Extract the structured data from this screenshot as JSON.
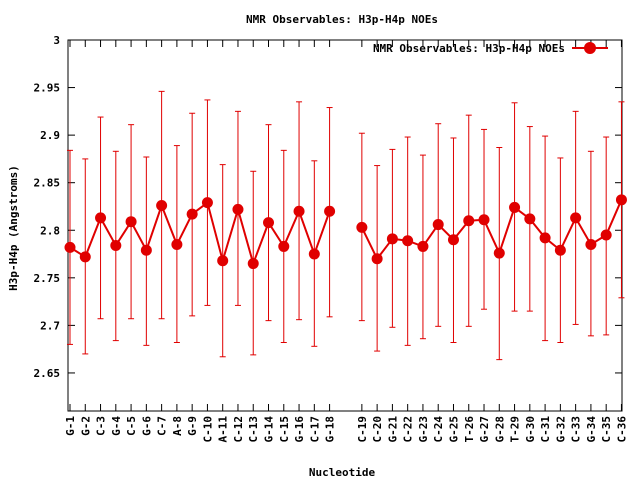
{
  "chart_data": {
    "type": "line",
    "title": "NMR Observables: H3p-H4p NOEs",
    "xlabel": "Nucleotide",
    "ylabel": "H3p-H4p (Angstroms)",
    "ylim": [
      2.61,
      3.0
    ],
    "yticks": [
      "2.65",
      "2.7",
      "2.75",
      "2.8",
      "2.85",
      "2.9",
      "2.95",
      "3"
    ],
    "grid": false,
    "legend_position": "top-right",
    "categories": [
      "G-1",
      "G-2",
      "C-3",
      "G-4",
      "C-5",
      "G-6",
      "C-7",
      "A-8",
      "G-9",
      "C-10",
      "A-11",
      "C-12",
      "C-13",
      "G-14",
      "C-15",
      "G-16",
      "C-17",
      "G-18",
      "C-19",
      "C-20",
      "G-21",
      "C-22",
      "G-23",
      "C-24",
      "G-25",
      "T-26",
      "G-27",
      "G-28",
      "T-29",
      "G-30",
      "C-31",
      "G-32",
      "C-33",
      "G-34",
      "C-35",
      "C-36"
    ],
    "series": [
      {
        "name": "NMR Observables: H3p-H4p NOEs",
        "color": "#e00000",
        "values": [
          2.782,
          2.772,
          2.813,
          2.784,
          2.809,
          2.779,
          2.826,
          2.785,
          2.817,
          2.829,
          2.768,
          2.822,
          2.765,
          2.808,
          2.783,
          2.82,
          2.775,
          2.82,
          2.803,
          2.77,
          2.791,
          2.789,
          2.783,
          2.806,
          2.79,
          2.81,
          2.811,
          2.776,
          2.824,
          2.812,
          2.792,
          2.779,
          2.813,
          2.785,
          2.795,
          2.832
        ],
        "err_low": [
          2.68,
          2.67,
          2.707,
          2.684,
          2.707,
          2.679,
          2.707,
          2.682,
          2.71,
          2.721,
          2.667,
          2.721,
          2.669,
          2.705,
          2.682,
          2.706,
          2.678,
          2.709,
          2.705,
          2.673,
          2.698,
          2.679,
          2.686,
          2.699,
          2.682,
          2.699,
          2.717,
          2.664,
          2.715,
          2.715,
          2.684,
          2.682,
          2.701,
          2.689,
          2.69,
          2.729
        ],
        "err_high": [
          2.884,
          2.875,
          2.919,
          2.883,
          2.911,
          2.877,
          2.946,
          2.889,
          2.923,
          2.937,
          2.869,
          2.925,
          2.862,
          2.911,
          2.884,
          2.935,
          2.873,
          2.929,
          2.902,
          2.868,
          2.885,
          2.898,
          2.879,
          2.912,
          2.897,
          2.921,
          2.906,
          2.887,
          2.934,
          2.909,
          2.899,
          2.876,
          2.925,
          2.883,
          2.898,
          2.935
        ]
      }
    ]
  }
}
